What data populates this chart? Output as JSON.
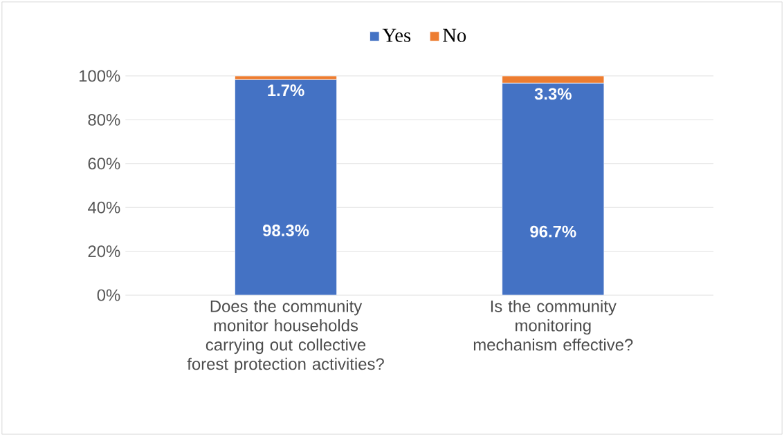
{
  "chart_data": {
    "type": "bar",
    "stacked": true,
    "categories": [
      "Does the community monitor households carrying out collective forest protection activities?",
      "Is the community monitoring mechanism effective?"
    ],
    "series": [
      {
        "name": "Yes",
        "color": "#4472c4",
        "values": [
          98.3,
          96.7
        ],
        "value_labels": [
          "98.3%",
          "96.7%"
        ]
      },
      {
        "name": "No",
        "color": "#ed7d31",
        "values": [
          1.7,
          3.3
        ],
        "value_labels": [
          "1.7%",
          "3.3%"
        ]
      }
    ],
    "ylim": [
      0,
      100
    ],
    "yticks": [
      {
        "value": 0,
        "label": "0%"
      },
      {
        "value": 20,
        "label": "20%"
      },
      {
        "value": 40,
        "label": "40%"
      },
      {
        "value": 60,
        "label": "60%"
      },
      {
        "value": 80,
        "label": "80%"
      },
      {
        "value": 100,
        "label": "100%"
      }
    ],
    "grid": "y",
    "legend": "top"
  }
}
